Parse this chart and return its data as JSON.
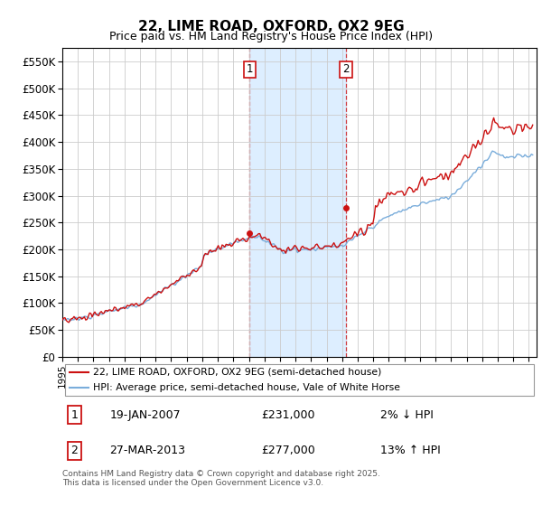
{
  "title": "22, LIME ROAD, OXFORD, OX2 9EG",
  "subtitle": "Price paid vs. HM Land Registry's House Price Index (HPI)",
  "ylabel_ticks": [
    "£0",
    "£50K",
    "£100K",
    "£150K",
    "£200K",
    "£250K",
    "£300K",
    "£350K",
    "£400K",
    "£450K",
    "£500K",
    "£550K"
  ],
  "ytick_vals": [
    0,
    50000,
    100000,
    150000,
    200000,
    250000,
    300000,
    350000,
    400000,
    450000,
    500000,
    550000
  ],
  "ylim": [
    0,
    575000
  ],
  "xlim_start": 1995.0,
  "xlim_end": 2025.5,
  "hpi_color": "#7aaddb",
  "price_color": "#cc1111",
  "sale1_date": 2007.05,
  "sale1_price": 231000,
  "sale2_date": 2013.24,
  "sale2_price": 277000,
  "legend_line1": "22, LIME ROAD, OXFORD, OX2 9EG (semi-detached house)",
  "legend_line2": "HPI: Average price, semi-detached house, Vale of White Horse",
  "annotation1_date": "19-JAN-2007",
  "annotation1_price": "£231,000",
  "annotation1_hpi": "2% ↓ HPI",
  "annotation2_date": "27-MAR-2013",
  "annotation2_price": "£277,000",
  "annotation2_hpi": "13% ↑ HPI",
  "footer": "Contains HM Land Registry data © Crown copyright and database right 2025.\nThis data is licensed under the Open Government Licence v3.0.",
  "bg_color": "#ffffff",
  "plot_bg_color": "#ffffff",
  "grid_color": "#cccccc",
  "shade_color": "#ddeeff"
}
